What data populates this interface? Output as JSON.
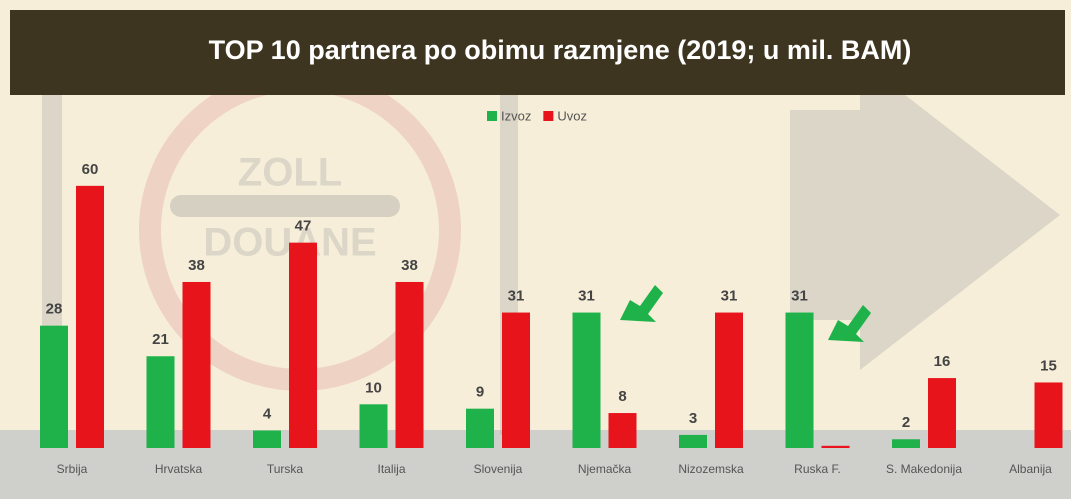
{
  "chart_data": {
    "type": "bar",
    "title": "TOP 10 partnera po obimu razmjene (2019; u mil. BAM)",
    "categories": [
      "Srbija",
      "Hrvatska",
      "Turska",
      "Italija",
      "Slovenija",
      "Njemačka",
      "Nizozemska",
      "Ruska F.",
      "S. Makedonija",
      "Albanija"
    ],
    "series": [
      {
        "name": "Izvoz",
        "color": "#1fb24a",
        "values": [
          28,
          21,
          4,
          10,
          9,
          31,
          3,
          31,
          2,
          null
        ],
        "value_labels": [
          28,
          21,
          4,
          10,
          9,
          31,
          3,
          31,
          2,
          null
        ]
      },
      {
        "name": "Uvoz",
        "color": "#e8141c",
        "values": [
          60,
          38,
          47,
          38,
          31,
          8,
          31,
          0.5,
          16,
          15
        ],
        "value_labels": [
          60,
          38,
          47,
          38,
          31,
          8,
          31,
          null,
          16,
          15
        ]
      }
    ],
    "ylim": [
      0,
      65
    ],
    "legend": "top"
  }
}
